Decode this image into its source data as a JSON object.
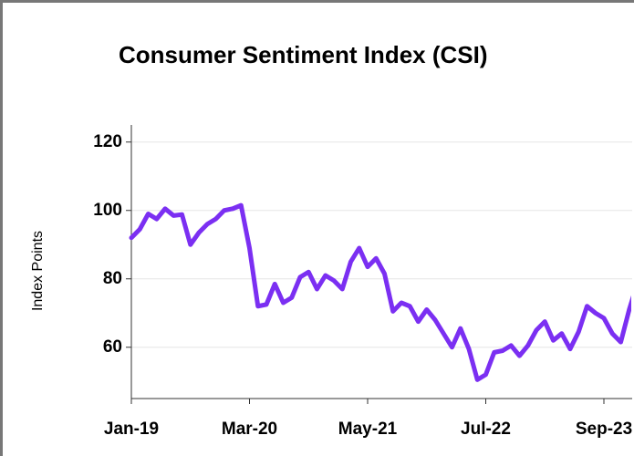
{
  "chart_data": {
    "type": "line",
    "title": "Consumer Sentiment Index (CSI)",
    "y_label": "Index Points",
    "categories": [
      "Jan-19",
      null,
      null,
      null,
      null,
      null,
      null,
      null,
      null,
      null,
      null,
      null,
      null,
      null,
      "Mar-20",
      null,
      null,
      null,
      null,
      null,
      null,
      null,
      null,
      null,
      null,
      null,
      null,
      null,
      "May-21",
      null,
      null,
      null,
      null,
      null,
      null,
      null,
      null,
      null,
      null,
      null,
      null,
      null,
      "Jul-22",
      null,
      null,
      null,
      null,
      null,
      null,
      null,
      null,
      null,
      null,
      null,
      null,
      null,
      "Sep-23",
      null,
      null,
      null,
      null
    ],
    "series": [
      {
        "name": "CSI",
        "color": "#7b2ff2",
        "values": [
          92,
          94.5,
          99,
          97.5,
          100.5,
          98.5,
          98.8,
          90,
          93.5,
          96,
          97.5,
          100,
          100.5,
          101.5,
          89,
          72,
          72.5,
          78.5,
          73,
          74.5,
          80.5,
          82,
          77,
          81,
          79.5,
          77,
          85,
          89,
          83.5,
          86,
          81.5,
          70.5,
          73,
          72,
          67.5,
          71,
          68,
          64,
          60,
          65.5,
          59.5,
          50.5,
          52,
          58.5,
          59,
          60.5,
          57.5,
          60.5,
          65,
          67.5,
          62,
          64,
          59.5,
          64.5,
          72,
          70,
          68.5,
          64,
          61.5,
          71,
          79
        ]
      }
    ],
    "ylim": [
      45,
      125
    ],
    "yticks": [
      60,
      80,
      100,
      120
    ],
    "grid": true
  }
}
